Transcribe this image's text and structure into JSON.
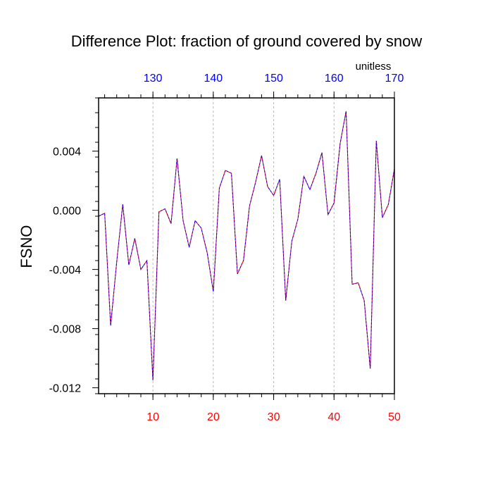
{
  "chart_data": {
    "type": "line",
    "title": "Difference Plot: fraction of ground covered by snow",
    "units_label": "unitless",
    "xlabel": "",
    "ylabel": "FSNO",
    "x_bottom": {
      "range": [
        1,
        50
      ],
      "ticks": [
        10,
        20,
        30,
        40,
        50
      ],
      "tick_labels": [
        "10",
        "20",
        "30",
        "40",
        "50"
      ],
      "color": "#ff0000"
    },
    "x_top": {
      "range": [
        121,
        170
      ],
      "ticks": [
        130,
        140,
        150,
        160,
        170
      ],
      "tick_labels": [
        "130",
        "140",
        "150",
        "160",
        "170"
      ],
      "color": "#0000ff"
    },
    "y": {
      "range": [
        -0.0124,
        0.0076
      ],
      "ticks": [
        -0.012,
        -0.008,
        -0.004,
        0.0,
        0.004
      ],
      "tick_labels": [
        "-0.012",
        "-0.008",
        "-0.004",
        "0.000",
        "0.004"
      ]
    },
    "grid": "vertical dashed at bottom x ticks",
    "series": [
      {
        "color": "#0000ff",
        "secondary_color": "#ff0000",
        "style": "dashed",
        "x": [
          1,
          2,
          3,
          4,
          5,
          6,
          7,
          8,
          9,
          10,
          11,
          12,
          13,
          14,
          15,
          16,
          17,
          18,
          19,
          20,
          21,
          22,
          23,
          24,
          25,
          26,
          27,
          28,
          29,
          30,
          31,
          32,
          33,
          34,
          35,
          36,
          37,
          38,
          39,
          40,
          41,
          42,
          43,
          44,
          45,
          46,
          47,
          48,
          49,
          50
        ],
        "values": [
          -0.0004,
          -0.0002,
          -0.0078,
          -0.0035,
          0.0004,
          -0.0037,
          -0.0019,
          -0.004,
          -0.0034,
          -0.0115,
          -0.0001,
          0.0001,
          -0.0009,
          0.0035,
          -0.0007,
          -0.0025,
          -0.0007,
          -0.0012,
          -0.0029,
          -0.0055,
          0.0015,
          0.0027,
          0.0025,
          -0.0043,
          -0.0034,
          0.0003,
          0.0019,
          0.0037,
          0.0016,
          0.001,
          0.0021,
          -0.0061,
          -0.0021,
          -0.0006,
          0.0023,
          0.0014,
          0.0025,
          0.0039,
          -0.0003,
          0.0005,
          0.0045,
          0.0067,
          -0.005,
          -0.0049,
          -0.0061,
          -0.0107,
          0.0047,
          -0.0005,
          0.0004,
          0.0028
        ]
      }
    ]
  }
}
